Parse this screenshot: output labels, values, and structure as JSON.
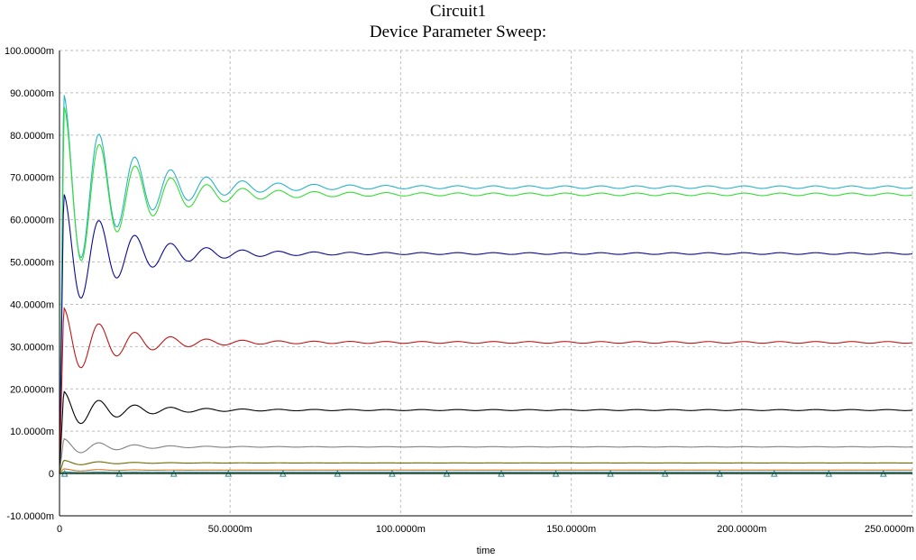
{
  "chart_data": {
    "type": "line",
    "title": "Circuit1",
    "subtitle": "Device Parameter Sweep:",
    "xlabel": "time",
    "ylabel": "",
    "xlim": [
      0,
      0.25
    ],
    "ylim": [
      -0.01,
      0.1
    ],
    "grid": true,
    "legend": "none",
    "x_ticks": [
      {
        "value": 0,
        "label": "0"
      },
      {
        "value": 0.05,
        "label": "50.0000m"
      },
      {
        "value": 0.1,
        "label": "100.0000m"
      },
      {
        "value": 0.15,
        "label": "150.0000m"
      },
      {
        "value": 0.2,
        "label": "200.0000m"
      },
      {
        "value": 0.25,
        "label": "250.0000m"
      }
    ],
    "y_ticks": [
      {
        "value": -0.01,
        "label": "-10.0000m"
      },
      {
        "value": 0,
        "label": "0"
      },
      {
        "value": 0.01,
        "label": "10.0000m"
      },
      {
        "value": 0.02,
        "label": "20.0000m"
      },
      {
        "value": 0.03,
        "label": "30.0000m"
      },
      {
        "value": 0.04,
        "label": "40.0000m"
      },
      {
        "value": 0.05,
        "label": "50.0000m"
      },
      {
        "value": 0.06,
        "label": "60.0000m"
      },
      {
        "value": 0.07,
        "label": "70.0000m"
      },
      {
        "value": 0.08,
        "label": "80.0000m"
      },
      {
        "value": 0.09,
        "label": "90.0000m"
      },
      {
        "value": 0.1,
        "label": "100.0000m"
      }
    ],
    "series": [
      {
        "color": "#29b3c7",
        "peak": 0.0895,
        "peak_t": 0.0012,
        "first_trough": 0.059,
        "settle": 0.0677,
        "period": 0.0105,
        "decay": 0.018,
        "ripple": 0.0003
      },
      {
        "color": "#33dd33",
        "peak": 0.0865,
        "peak_t": 0.0013,
        "first_trough": 0.0577,
        "settle": 0.066,
        "period": 0.0105,
        "decay": 0.018,
        "ripple": 0.0003
      },
      {
        "color": "#0a0a96",
        "peak": 0.066,
        "peak_t": 0.0012,
        "first_trough": 0.0457,
        "settle": 0.052,
        "period": 0.0105,
        "decay": 0.017,
        "ripple": 0.0002
      },
      {
        "color": "#c01515",
        "peak": 0.039,
        "peak_t": 0.0012,
        "first_trough": 0.0273,
        "settle": 0.031,
        "period": 0.0105,
        "decay": 0.016,
        "ripple": 0.0002
      },
      {
        "color": "#000000",
        "peak": 0.0193,
        "peak_t": 0.0012,
        "first_trough": 0.0133,
        "settle": 0.015,
        "period": 0.0105,
        "decay": 0.015,
        "ripple": 0.00012
      },
      {
        "color": "#808080",
        "peak": 0.0082,
        "peak_t": 0.0012,
        "first_trough": 0.0055,
        "settle": 0.0063,
        "period": 0.0105,
        "decay": 0.014,
        "ripple": 5e-05
      },
      {
        "color": "#6b6b00",
        "peak": 0.0031,
        "peak_t": 0.0012,
        "first_trough": 0.0022,
        "settle": 0.0025,
        "period": 0.0105,
        "decay": 0.012,
        "ripple": 2e-05
      },
      {
        "color": "#d07020",
        "peak": 0.0011,
        "peak_t": 0.0012,
        "first_trough": 0.0007,
        "settle": 0.0008,
        "period": 0.0105,
        "decay": 0.012,
        "ripple": 0.0
      },
      {
        "color": "#2090a0",
        "peak": 0.0004,
        "peak_t": 0.0012,
        "first_trough": 0.0003,
        "settle": 0.0003,
        "period": 0.0105,
        "decay": 0.012,
        "ripple": 0.0
      },
      {
        "color": "#20a040",
        "peak": 0.0001,
        "peak_t": 0.0012,
        "first_trough": 0.0001,
        "settle": 0.0001,
        "period": 0.0105,
        "decay": 0.012,
        "ripple": 0.0
      }
    ],
    "marker_times": [
      0.0015,
      0.0175,
      0.0335,
      0.0495,
      0.0655,
      0.0815,
      0.0975,
      0.1135,
      0.1295,
      0.1455,
      0.1615,
      0.1775,
      0.1935,
      0.2095,
      0.2255,
      0.2415
    ],
    "marker_value": 0.0
  }
}
